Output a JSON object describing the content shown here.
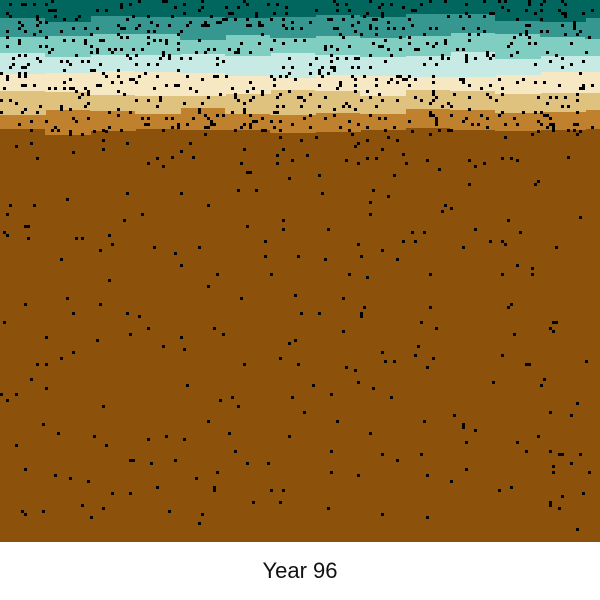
{
  "caption": "Year 96",
  "palette": {
    "deep_teal": "#01665e",
    "teal": "#35978f",
    "light_teal": "#80cdc1",
    "pale_teal": "#c7eae5",
    "cream": "#f6e8c3",
    "tan": "#dfc27d",
    "ochre": "#bf812d",
    "brown": "#8c510a",
    "speck": "#000000"
  }
}
